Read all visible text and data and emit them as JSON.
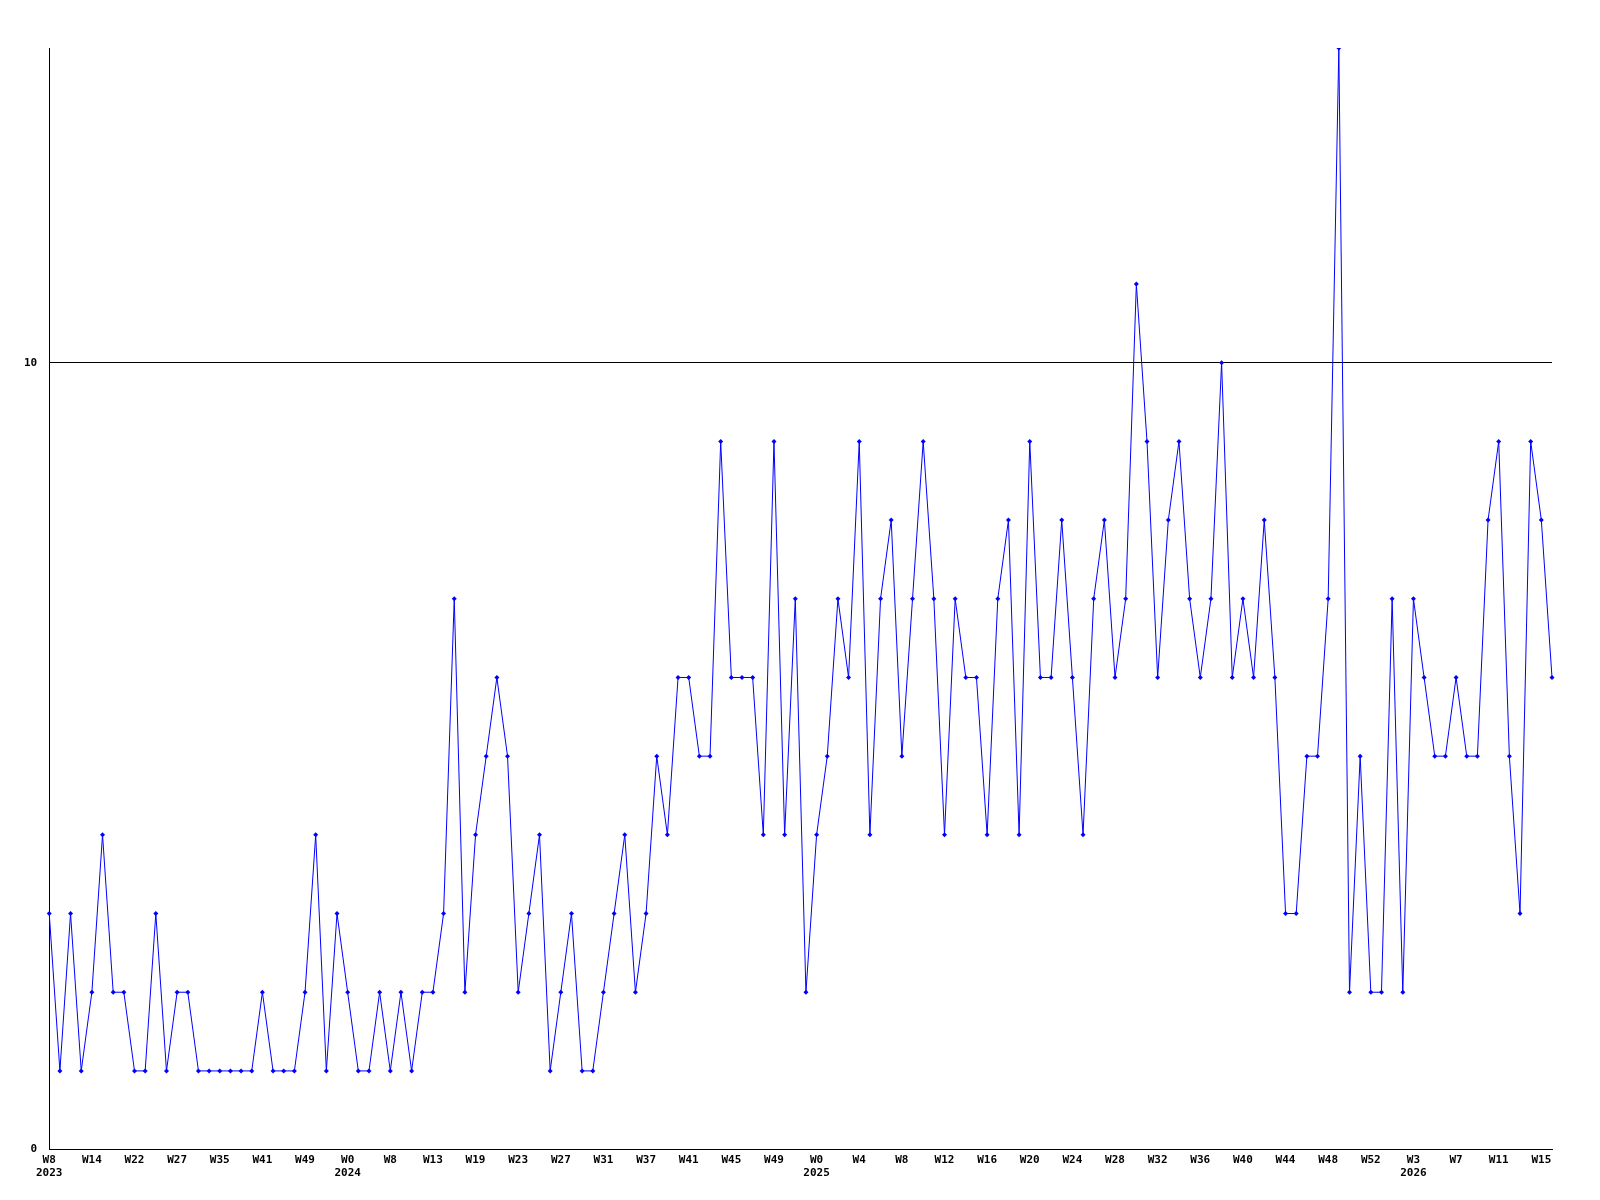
{
  "chart_data": {
    "type": "line",
    "categories": [
      "W8\n2023",
      null,
      null,
      null,
      "W14",
      null,
      null,
      null,
      "W22",
      null,
      null,
      null,
      "W27",
      null,
      null,
      null,
      "W35",
      null,
      null,
      null,
      "W41",
      null,
      null,
      null,
      "W49",
      null,
      null,
      null,
      "W0\n2024",
      null,
      null,
      null,
      "W8",
      null,
      null,
      null,
      "W13",
      null,
      null,
      null,
      "W19",
      null,
      null,
      null,
      "W23",
      null,
      null,
      null,
      "W27",
      null,
      null,
      null,
      "W31",
      null,
      null,
      null,
      "W37",
      null,
      null,
      null,
      "W41",
      null,
      null,
      null,
      "W45",
      null,
      null,
      null,
      "W49",
      null,
      null,
      null,
      "W0\n2025",
      null,
      null,
      null,
      "W4",
      null,
      null,
      null,
      "W8",
      null,
      null,
      null,
      "W12",
      null,
      null,
      null,
      "W16",
      null,
      null,
      null,
      "W20",
      null,
      null,
      null,
      "W24",
      null,
      null,
      null,
      "W28",
      null,
      null,
      null,
      "W32",
      null,
      null,
      null,
      "W36",
      null,
      null,
      null,
      "W40",
      null,
      null,
      null,
      "W44",
      null,
      null,
      null,
      "W48",
      null,
      null,
      null,
      "W52",
      null,
      null,
      null,
      "W3\n2026",
      null,
      null,
      null,
      "W7",
      null,
      null,
      null,
      "W11",
      null,
      null,
      null,
      "W15",
      null
    ],
    "series": [
      {
        "color": "#0000ff",
        "values": [
          3,
          1,
          3,
          1,
          2,
          4,
          2,
          2,
          1,
          1,
          3,
          1,
          2,
          2,
          1,
          1,
          1,
          1,
          1,
          1,
          2,
          1,
          1,
          1,
          2,
          4,
          1,
          3,
          2,
          1,
          1,
          2,
          1,
          2,
          1,
          2,
          2,
          3,
          7,
          2,
          4,
          5,
          6,
          5,
          2,
          3,
          4,
          1,
          2,
          3,
          1,
          1,
          2,
          3,
          4,
          2,
          3,
          5,
          4,
          6,
          6,
          5,
          5,
          9,
          6,
          6,
          6,
          4,
          9,
          4,
          7,
          2,
          4,
          5,
          7,
          6,
          9,
          4,
          7,
          8,
          5,
          7,
          9,
          7,
          4,
          7,
          6,
          6,
          4,
          7,
          8,
          4,
          9,
          6,
          6,
          8,
          6,
          4,
          7,
          8,
          6,
          7,
          11,
          9,
          6,
          8,
          9,
          7,
          6,
          7,
          10,
          6,
          7,
          6,
          8,
          6,
          3,
          3,
          5,
          5,
          7,
          14,
          2,
          5,
          2,
          2,
          7,
          2,
          7,
          6,
          5,
          5,
          6,
          5,
          5,
          8,
          9,
          5,
          3,
          9,
          8,
          6
        ]
      }
    ],
    "ylim": [
      0,
      14
    ],
    "yticks": [
      0,
      10
    ],
    "grid": "y",
    "marker": "diamond",
    "line_style": "solid"
  }
}
